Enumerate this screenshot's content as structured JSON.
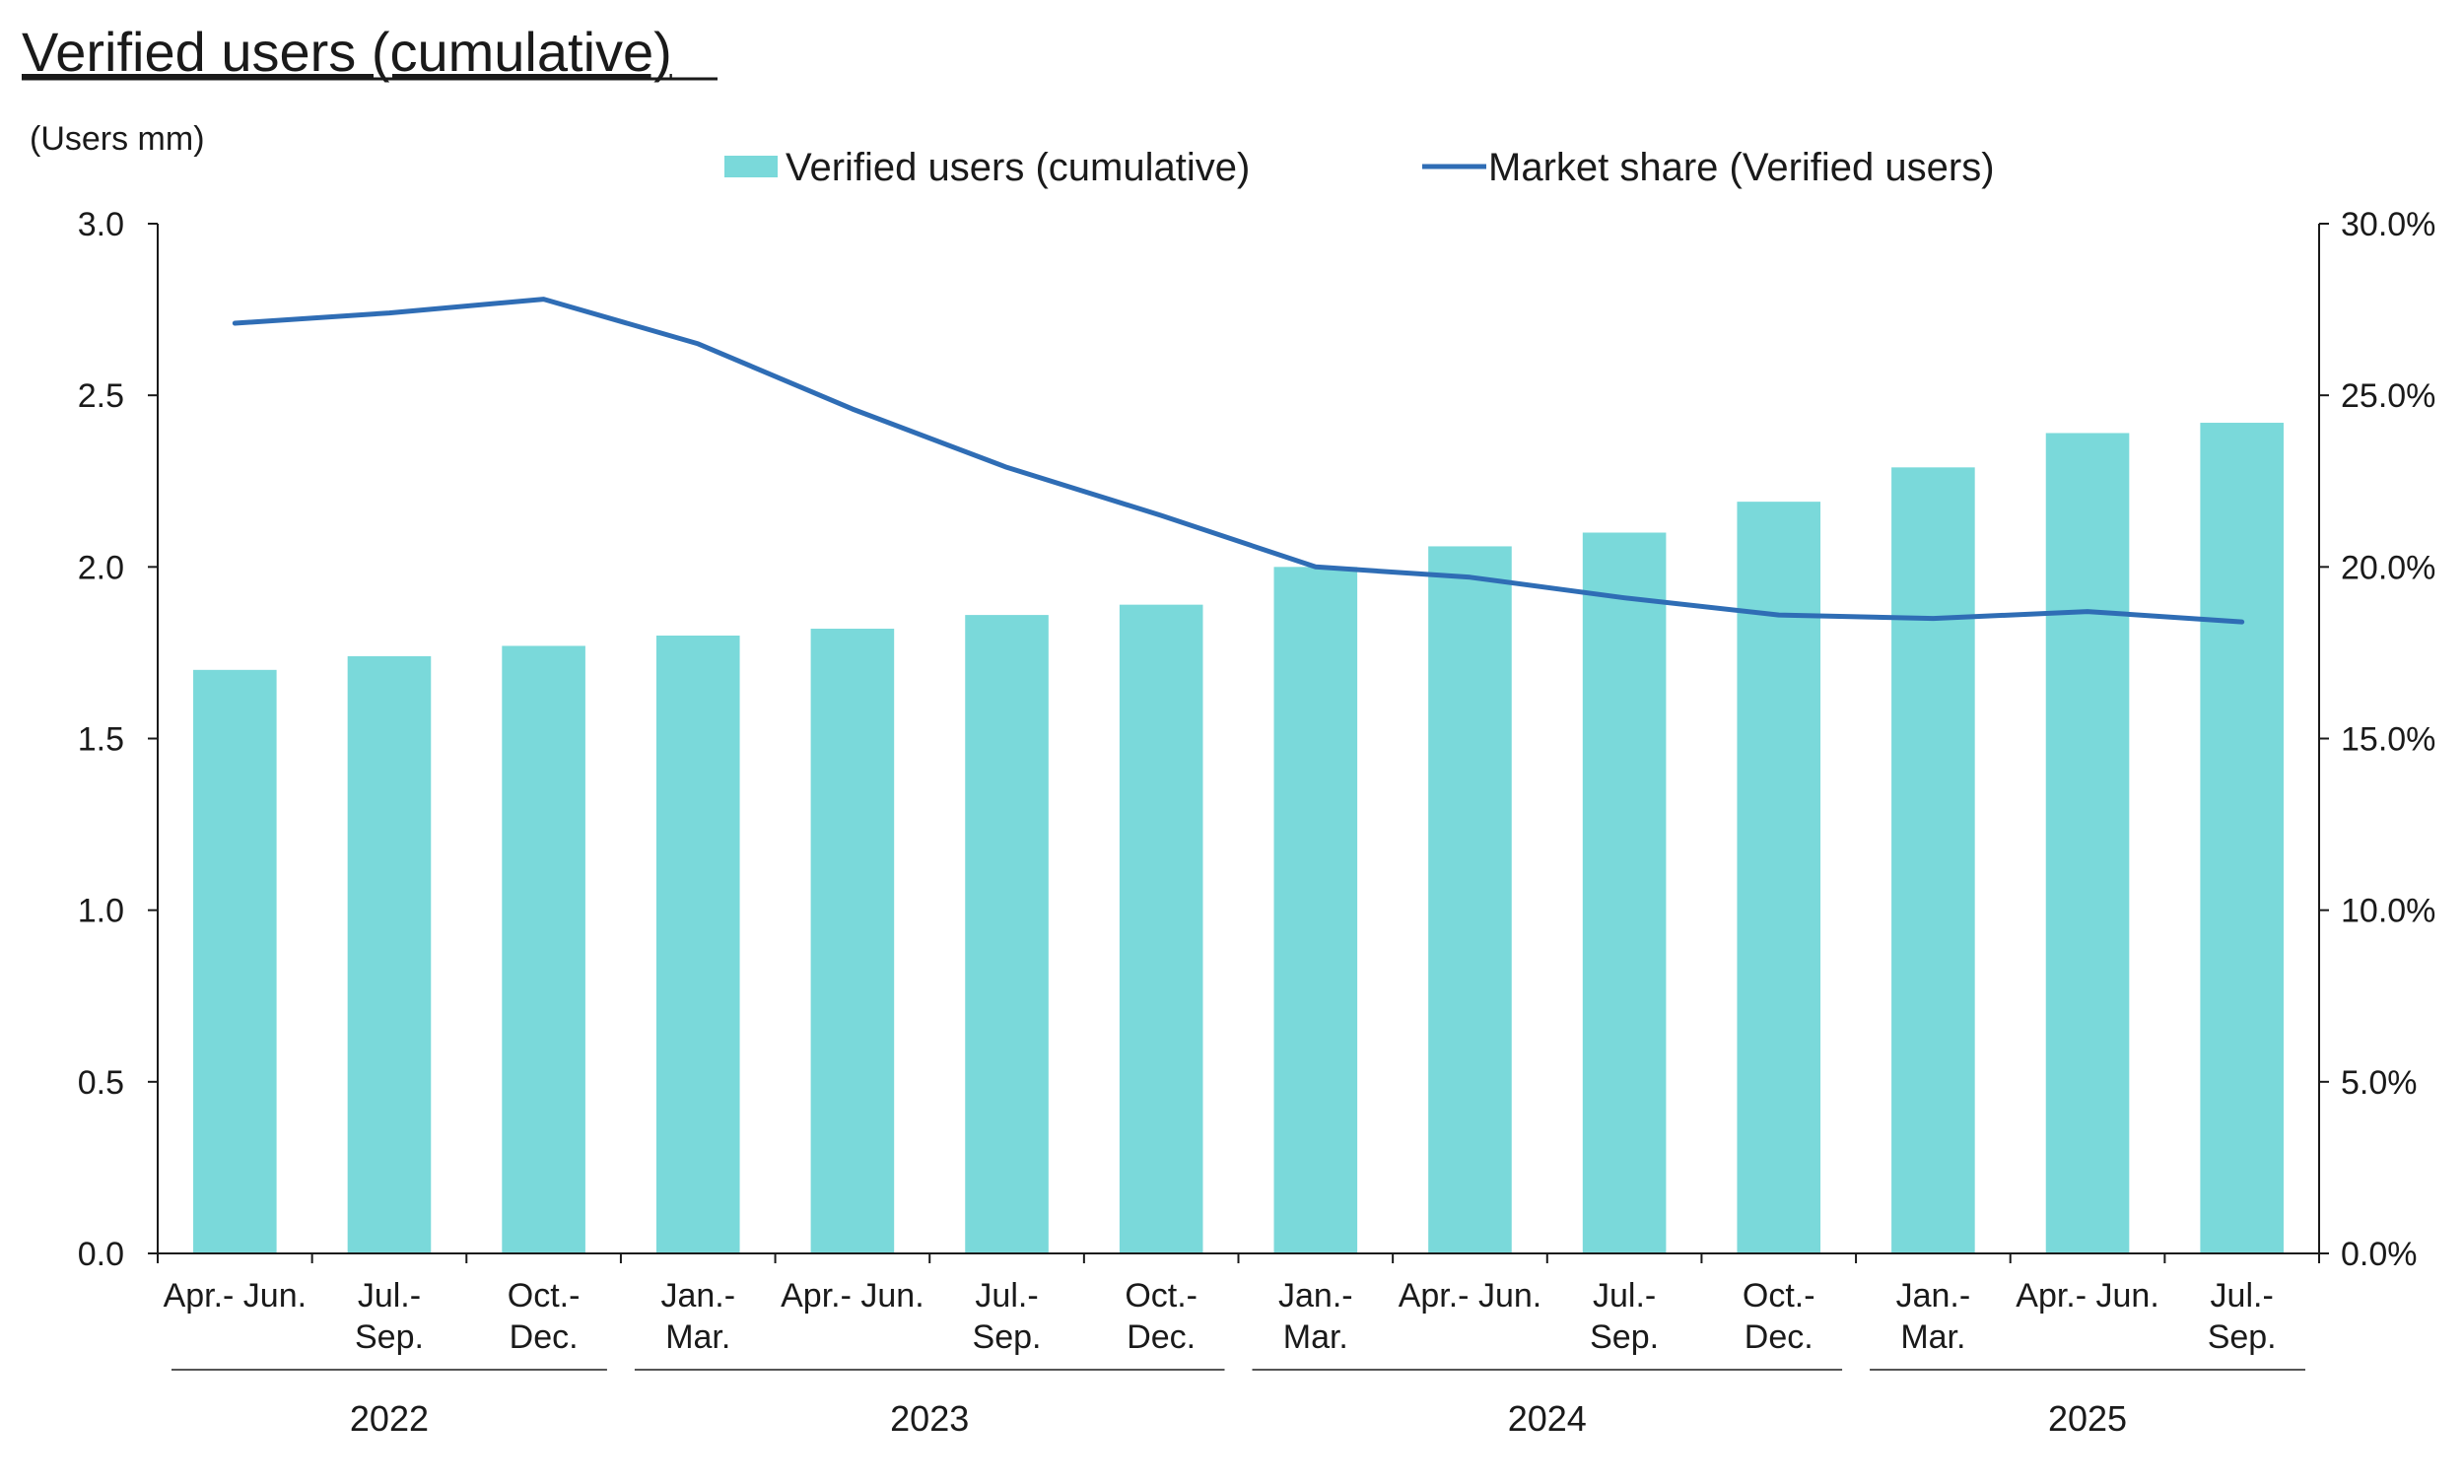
{
  "chart_data": {
    "type": "bar",
    "title": "Verified users (cumulative)",
    "y_unit_label": "(Users mm)",
    "categories": [
      [
        "Apr.- Jun."
      ],
      [
        "Jul.-",
        "Sep."
      ],
      [
        "Oct.-",
        "Dec."
      ],
      [
        "Jan.-",
        "Mar."
      ],
      [
        "Apr.- Jun."
      ],
      [
        "Jul.-",
        "Sep."
      ],
      [
        "Oct.-",
        "Dec."
      ],
      [
        "Jan.-",
        "Mar."
      ],
      [
        "Apr.- Jun."
      ],
      [
        "Jul.-",
        "Sep."
      ],
      [
        "Oct.-",
        "Dec."
      ],
      [
        "Jan.-",
        "Mar."
      ],
      [
        "Apr.- Jun."
      ],
      [
        "Jul.-",
        "Sep."
      ]
    ],
    "year_groups": [
      {
        "label": "2022",
        "start": 0,
        "end": 2
      },
      {
        "label": "2023",
        "start": 3,
        "end": 6
      },
      {
        "label": "2024",
        "start": 7,
        "end": 10
      },
      {
        "label": "2025",
        "start": 11,
        "end": 13
      }
    ],
    "series": [
      {
        "name": "Verified users (cumulative)",
        "kind": "bar",
        "axis": "left",
        "color": "#7ad9da",
        "values": [
          1.7,
          1.74,
          1.77,
          1.8,
          1.82,
          1.86,
          1.89,
          2.0,
          2.06,
          2.1,
          2.19,
          2.29,
          2.39,
          2.42
        ]
      },
      {
        "name": "Market share (Verified users)",
        "kind": "line",
        "axis": "right",
        "color": "#2f6db5",
        "values": [
          27.1,
          27.4,
          27.8,
          26.5,
          24.6,
          22.9,
          21.5,
          20.0,
          19.7,
          19.1,
          18.6,
          18.5,
          18.7,
          18.4
        ]
      }
    ],
    "y_left": {
      "min": 0,
      "max": 3.0,
      "ticks": [
        "0.0",
        "0.5",
        "1.0",
        "1.5",
        "2.0",
        "2.5",
        "3.0"
      ]
    },
    "y_right": {
      "min": 0,
      "max": 30,
      "ticks": [
        "0.0%",
        "5.0%",
        "10.0%",
        "15.0%",
        "20.0%",
        "25.0%",
        "30.0%"
      ]
    },
    "grid": false,
    "legend_position": "top-center"
  }
}
